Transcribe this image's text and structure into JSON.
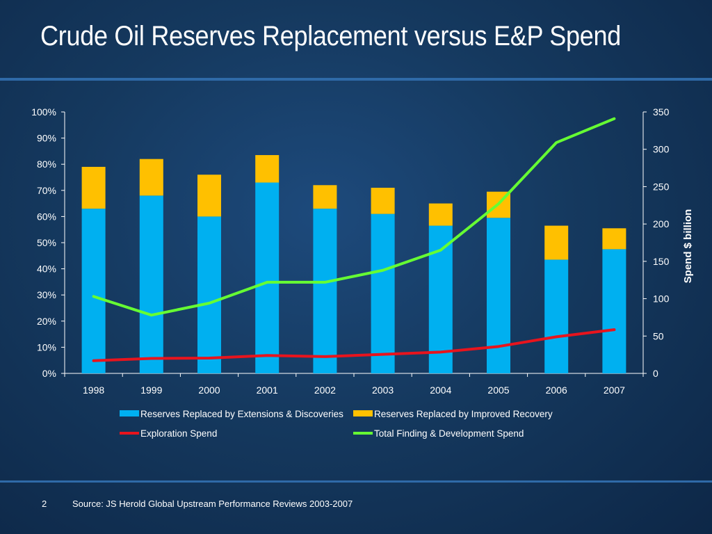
{
  "slide": {
    "title": "Crude Oil Reserves Replacement versus E&P Spend",
    "page_number": "2",
    "source": "Source: JS Herold Global Upstream Performance Reviews 2003-2007"
  },
  "chart_data": {
    "type": "bar",
    "stacked": true,
    "title": "",
    "categories": [
      "1998",
      "1999",
      "2000",
      "2001",
      "2002",
      "2003",
      "2004",
      "2005",
      "2006",
      "2007"
    ],
    "y_left": {
      "ylim": [
        0,
        100
      ],
      "ticks": [
        0,
        10,
        20,
        30,
        40,
        50,
        60,
        70,
        80,
        90,
        100
      ],
      "tick_labels": [
        "0%",
        "10%",
        "20%",
        "30%",
        "40%",
        "50%",
        "60%",
        "70%",
        "80%",
        "90%",
        "100%"
      ],
      "label": ""
    },
    "y_right": {
      "ylim": [
        0,
        350
      ],
      "ticks": [
        0,
        50,
        100,
        150,
        200,
        250,
        300,
        350
      ],
      "tick_labels": [
        "0",
        "50",
        "100",
        "150",
        "200",
        "250",
        "300",
        "350"
      ],
      "label": "Spend $ billion"
    },
    "series": [
      {
        "name": "Reserves Replaced by Extensions & Discoveries",
        "kind": "bar",
        "axis": "left",
        "color": "#00b0f0",
        "values": [
          63,
          68,
          60,
          73,
          63,
          61,
          56.5,
          59.5,
          43.5,
          47.5
        ]
      },
      {
        "name": "Reserves Replaced by Improved Recovery",
        "kind": "bar",
        "axis": "left",
        "color": "#ffc000",
        "values": [
          16,
          14,
          16,
          10.5,
          9,
          10,
          8.5,
          10,
          13,
          8
        ]
      },
      {
        "name": "Exploration Spend",
        "kind": "line",
        "axis": "right",
        "color": "#e8141d",
        "values": [
          17,
          20,
          20.5,
          24,
          22.5,
          25.5,
          28.5,
          36,
          49,
          58.5
        ]
      },
      {
        "name": "Total Finding & Development Spend",
        "kind": "line",
        "axis": "right",
        "color": "#66ff33",
        "values": [
          103,
          78,
          94,
          122,
          122,
          138,
          165,
          227,
          309,
          341
        ]
      }
    ],
    "legend": {
      "position": "bottom"
    },
    "grid": false
  }
}
